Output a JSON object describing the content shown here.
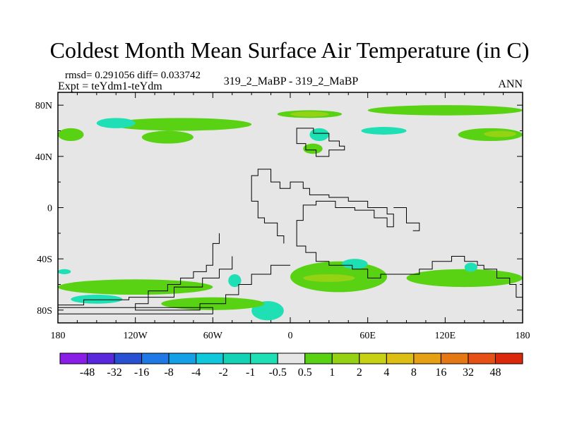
{
  "chart_data": {
    "type": "heatmap",
    "title": "Coldest Month Mean Surface Air Temperature (in C)",
    "stats_line": "rmsd= 0.291056 diff= 0.033742",
    "experiment": "Expt = teYdm1-teYdm",
    "case": "319_2_MaBP - 319_2_MaBP",
    "season": "ANN",
    "x_ticks": [
      "180",
      "120W",
      "60W",
      "0",
      "60E",
      "120E",
      "180"
    ],
    "x_tick_values": [
      -180,
      -120,
      -60,
      0,
      60,
      120,
      180
    ],
    "y_ticks": [
      "80N",
      "40N",
      "0",
      "40S",
      "80S"
    ],
    "y_tick_values": [
      80,
      40,
      0,
      -40,
      -80
    ],
    "xlim": [
      -180,
      180
    ],
    "ylim": [
      -90,
      90
    ],
    "colorbar_levels": [
      "-48",
      "-32",
      "-16",
      "-8",
      "-4",
      "-2",
      "-1",
      "-0.5",
      "0.5",
      "1",
      "2",
      "4",
      "8",
      "16",
      "32",
      "48"
    ],
    "colorbar_colors": [
      "#8a1ee6",
      "#5a28dc",
      "#2850d2",
      "#1e78e6",
      "#14a0e6",
      "#10c8dc",
      "#14d2b4",
      "#1ee0b4",
      "#e6e6e6",
      "#5ad214",
      "#96d214",
      "#c8d214",
      "#dcbe14",
      "#e6a014",
      "#e67814",
      "#e65014",
      "#dc280a"
    ],
    "background_color": "#e6e6e6",
    "regions": [
      {
        "label": "green band 80N",
        "lon": [
          -140,
          -30
        ],
        "lat": [
          60,
          70
        ],
        "class": 9
      },
      {
        "label": "cyan 70N",
        "lon": [
          -150,
          -120
        ],
        "lat": [
          62,
          70
        ],
        "class": 7
      },
      {
        "label": "green 60N west",
        "lon": [
          -180,
          -160
        ],
        "lat": [
          52,
          62
        ],
        "class": 9
      },
      {
        "label": "green 55N",
        "lon": [
          -115,
          -75
        ],
        "lat": [
          50,
          60
        ],
        "class": 9
      },
      {
        "label": "green arctic east",
        "lon": [
          -10,
          40
        ],
        "lat": [
          70,
          76
        ],
        "class": 9
      },
      {
        "label": "yellow arctic east",
        "lon": [
          0,
          30
        ],
        "lat": [
          71,
          75
        ],
        "class": 10
      },
      {
        "label": "green far east arctic",
        "lon": [
          60,
          180
        ],
        "lat": [
          72,
          80
        ],
        "class": 9
      },
      {
        "label": "cyan scandinavia",
        "lon": [
          15,
          30
        ],
        "lat": [
          52,
          62
        ],
        "class": 7
      },
      {
        "label": "green scandinavia",
        "lon": [
          10,
          25
        ],
        "lat": [
          42,
          50
        ],
        "class": 9
      },
      {
        "label": "cyan siberia",
        "lon": [
          55,
          90
        ],
        "lat": [
          57,
          63
        ],
        "class": 7
      },
      {
        "label": "green siberia",
        "lon": [
          130,
          180
        ],
        "lat": [
          52,
          62
        ],
        "class": 9
      },
      {
        "label": "yellow siberia",
        "lon": [
          150,
          175
        ],
        "lat": [
          55,
          60
        ],
        "class": 10
      },
      {
        "label": "cyan 40S west",
        "lon": [
          -180,
          -170
        ],
        "lat": [
          -52,
          -48
        ],
        "class": 7
      },
      {
        "label": "green 50S",
        "lon": [
          -180,
          -60
        ],
        "lat": [
          -68,
          -56
        ],
        "class": 9
      },
      {
        "label": "cyan 60S",
        "lon": [
          -30,
          -5
        ],
        "lat": [
          -88,
          -73
        ],
        "class": 7
      },
      {
        "label": "cyan 55S",
        "lon": [
          -48,
          -38
        ],
        "lat": [
          -62,
          -52
        ],
        "class": 7
      },
      {
        "label": "green 50S atlantic",
        "lon": [
          0,
          75
        ],
        "lat": [
          -66,
          -42
        ],
        "class": 9
      },
      {
        "label": "yellow 50S atlantic",
        "lon": [
          10,
          50
        ],
        "lat": [
          -58,
          -52
        ],
        "class": 10
      },
      {
        "label": "cyan 50S indian",
        "lon": [
          40,
          60
        ],
        "lat": [
          -48,
          -40
        ],
        "class": 7
      },
      {
        "label": "green 55S pacific",
        "lon": [
          90,
          180
        ],
        "lat": [
          -62,
          -48
        ],
        "class": 9
      },
      {
        "label": "cyan 45S pacific",
        "lon": [
          135,
          145
        ],
        "lat": [
          -50,
          -43
        ],
        "class": 7
      },
      {
        "label": "green 70S",
        "lon": [
          -100,
          -20
        ],
        "lat": [
          -80,
          -70
        ],
        "class": 9
      },
      {
        "label": "cyan 75S",
        "lon": [
          -170,
          -130
        ],
        "lat": [
          -75,
          -68
        ],
        "class": 7
      }
    ]
  }
}
